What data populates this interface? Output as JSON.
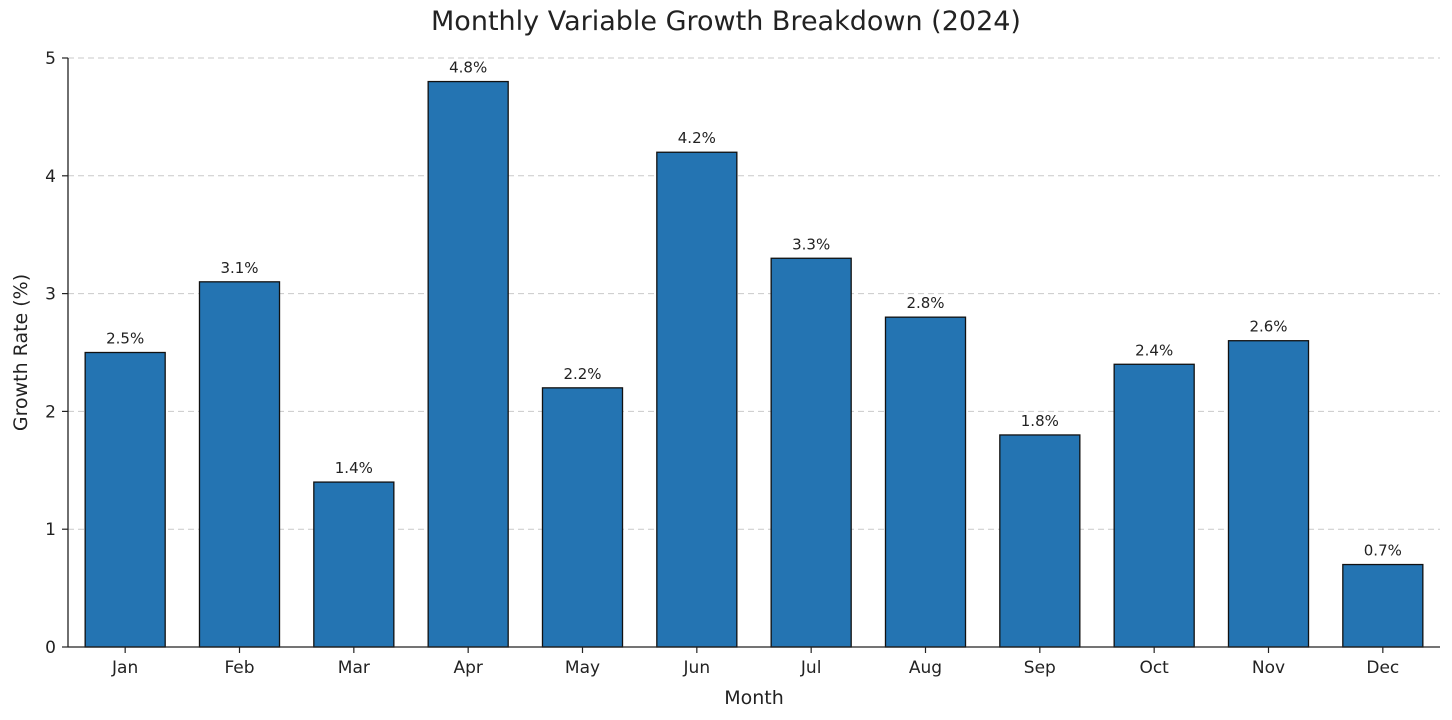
{
  "chart_data": {
    "type": "bar",
    "title": "Monthly Variable Growth Breakdown (2024)",
    "xlabel": "Month",
    "ylabel": "Growth Rate (%)",
    "categories": [
      "Jan",
      "Feb",
      "Mar",
      "Apr",
      "May",
      "Jun",
      "Jul",
      "Aug",
      "Sep",
      "Oct",
      "Nov",
      "Dec"
    ],
    "values": [
      2.5,
      3.1,
      1.4,
      4.8,
      2.2,
      4.2,
      3.3,
      2.8,
      1.8,
      2.4,
      2.6,
      0.7
    ],
    "data_labels": [
      "2.5%",
      "3.1%",
      "1.4%",
      "4.8%",
      "2.2%",
      "4.2%",
      "3.3%",
      "2.8%",
      "1.8%",
      "2.4%",
      "2.6%",
      "0.7%"
    ],
    "ylim": [
      0,
      5
    ],
    "yticks": [
      0,
      1,
      2,
      3,
      4,
      5
    ],
    "grid": "horizontal-dashed",
    "bar_color": "#2474b2",
    "bar_edge_color": "#111111"
  }
}
